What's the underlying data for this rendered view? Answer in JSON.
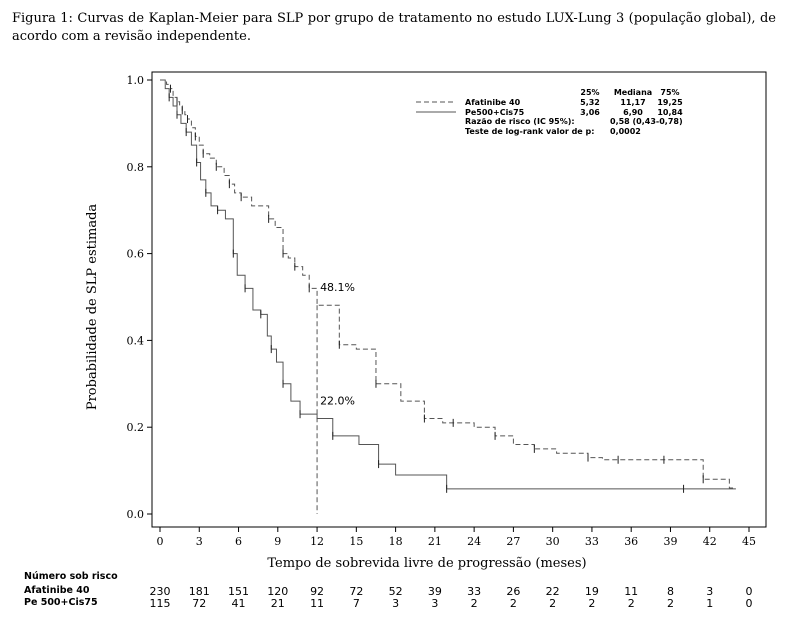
{
  "caption": "Figura 1: Curvas de Kaplan-Meier para SLP por grupo de tratamento no estudo LUX-Lung 3 (população global), de acordo com a revisão independente.",
  "chart_data": {
    "type": "line",
    "title": "",
    "xlabel": "Tempo de sobrevida livre de progressão (meses)",
    "ylabel": "Probabilidade de SLP estimada",
    "xlim": [
      0,
      45
    ],
    "ylim": [
      0,
      1.0
    ],
    "xticks": [
      0,
      3,
      6,
      9,
      12,
      15,
      18,
      21,
      24,
      27,
      30,
      33,
      36,
      39,
      42,
      45
    ],
    "xtick_labels": [
      "0",
      "3",
      "6",
      "9",
      "12",
      "15",
      "18",
      "21",
      "24",
      "27",
      "30",
      "33",
      "36",
      "39",
      "42",
      "45"
    ],
    "yticks": [
      0.0,
      0.2,
      0.4,
      0.6,
      0.8,
      1.0
    ],
    "ytick_labels": [
      "0.0",
      "0.2",
      "0.4",
      "0.6",
      "0.8",
      "1.0"
    ],
    "grid": false,
    "legend_position": "top-right",
    "series": [
      {
        "name": "Afatinibe 40",
        "line_style": "dashed",
        "color": "#555555",
        "x": [
          0,
          0.5,
          0.8,
          1.0,
          1.3,
          1.5,
          1.7,
          1.9,
          2.1,
          2.4,
          2.7,
          3.0,
          3.3,
          3.8,
          4.3,
          4.9,
          5.3,
          5.7,
          6.2,
          7.0,
          8.3,
          8.8,
          9.4,
          9.8,
          10.3,
          10.9,
          11.4,
          12.0,
          13.7,
          15.0,
          16.5,
          18.4,
          20.2,
          21.6,
          22.4,
          24.0,
          25.6,
          27.0,
          28.6,
          30.3,
          32.7,
          33.8,
          35.0,
          37.0,
          38.5,
          40.0,
          41.5,
          43.5,
          44.0
        ],
        "y": [
          1.0,
          0.99,
          0.98,
          0.96,
          0.95,
          0.94,
          0.93,
          0.92,
          0.91,
          0.89,
          0.87,
          0.85,
          0.83,
          0.82,
          0.8,
          0.78,
          0.76,
          0.74,
          0.73,
          0.71,
          0.68,
          0.66,
          0.6,
          0.59,
          0.57,
          0.55,
          0.52,
          0.481,
          0.39,
          0.38,
          0.3,
          0.26,
          0.22,
          0.21,
          0.21,
          0.2,
          0.18,
          0.16,
          0.15,
          0.14,
          0.13,
          0.125,
          0.125,
          0.125,
          0.125,
          0.125,
          0.08,
          0.06,
          0.06
        ]
      },
      {
        "name": "Pe500+Cis75",
        "line_style": "solid",
        "color": "#555555",
        "x": [
          0,
          0.4,
          0.7,
          1.0,
          1.3,
          1.6,
          2.0,
          2.4,
          2.8,
          3.1,
          3.5,
          3.9,
          4.4,
          5.0,
          5.6,
          5.9,
          6.5,
          7.1,
          7.7,
          8.2,
          8.5,
          8.9,
          9.4,
          10.0,
          10.7,
          12.0,
          13.2,
          15.2,
          16.7,
          18.0,
          21.9,
          30.0,
          40.0,
          44.0
        ],
        "y": [
          1.0,
          0.98,
          0.96,
          0.94,
          0.92,
          0.9,
          0.88,
          0.85,
          0.81,
          0.77,
          0.74,
          0.71,
          0.7,
          0.68,
          0.6,
          0.55,
          0.52,
          0.47,
          0.46,
          0.41,
          0.38,
          0.35,
          0.3,
          0.26,
          0.23,
          0.22,
          0.18,
          0.16,
          0.115,
          0.09,
          0.058,
          0.058,
          0.058,
          0.058
        ]
      }
    ],
    "annotations": [
      {
        "text": "48.1%",
        "x": 12,
        "y": 0.481
      },
      {
        "text": "22.0%",
        "x": 12,
        "y": 0.22
      }
    ],
    "reference_line": {
      "x": 12,
      "y_top": 0.481
    },
    "legend_table": {
      "headers": [
        "25%",
        "Mediana",
        "75%"
      ],
      "rows": [
        {
          "name": "Afatinibe 40",
          "values": [
            "5,32",
            "11,17",
            "19,25"
          ]
        },
        {
          "name": "Pe500+Cis75",
          "values": [
            "3,06",
            "6,90",
            "10,84"
          ]
        }
      ],
      "hazard_label": "Razão de risco (IC 95%):",
      "hazard_value": "0,58 (0,43-0,78)",
      "logrank_label": "Teste de log-rank valor de p:",
      "logrank_value": "0,0002"
    },
    "risk_table": {
      "title": "Número sob risco",
      "times": [
        0,
        3,
        6,
        9,
        12,
        15,
        18,
        21,
        24,
        27,
        30,
        33,
        36,
        39,
        42,
        45
      ],
      "rows": [
        {
          "label": "Afatinibe 40",
          "counts": [
            "230",
            "181",
            "151",
            "120",
            "92",
            "72",
            "52",
            "39",
            "33",
            "26",
            "22",
            "19",
            "11",
            "8",
            "3",
            "0"
          ]
        },
        {
          "label": "Pe 500+Cis75",
          "counts": [
            "115",
            "72",
            "41",
            "21",
            "11",
            "7",
            "3",
            "3",
            "2",
            "2",
            "2",
            "2",
            "2",
            "2",
            "1",
            "0"
          ]
        }
      ]
    }
  }
}
